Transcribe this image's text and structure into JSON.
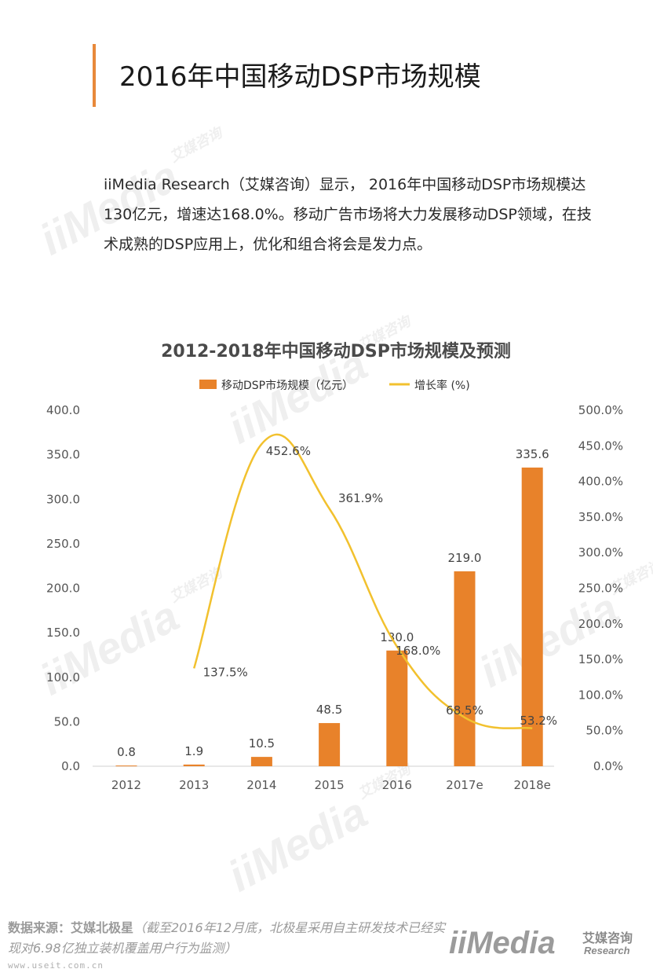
{
  "page_title": "2016年中国移动DSP市场规模",
  "intro": "iiMedia Research（艾媒咨询）显示， 2016年中国移动DSP市场规模达130亿元，增速达168.0%。移动广告市场将大力发展移动DSP领域，在技术成熟的DSP应用上，优化和组合将会是发力点。",
  "watermark": {
    "brand": "iiMedia",
    "cn": "艾媒咨询",
    "en": "Research"
  },
  "colors": {
    "accent": "#e8893a",
    "bar": "#e8822a",
    "line": "#f2c12e"
  },
  "chart_data": {
    "type": "bar",
    "title": "2012-2018年中国移动DSP市场规模及预测",
    "categories": [
      "2012",
      "2013",
      "2014",
      "2015",
      "2016",
      "2017e",
      "2018e"
    ],
    "series": [
      {
        "name": "移动DSP市场规模（亿元）",
        "type": "bar",
        "axis": "left",
        "values": [
          0.8,
          1.9,
          10.5,
          48.5,
          130.0,
          219.0,
          335.6
        ],
        "labels": [
          "0.8",
          "1.9",
          "10.5",
          "48.5",
          "130.0",
          "219.0",
          "335.6"
        ]
      },
      {
        "name": "增长率 (%)",
        "type": "line",
        "axis": "right",
        "values": [
          null,
          137.5,
          452.6,
          361.9,
          168.0,
          68.5,
          53.2
        ],
        "labels": [
          "",
          "137.5%",
          "452.6%",
          "361.9%",
          "168.0%",
          "68.5%",
          "53.2%"
        ]
      }
    ],
    "y_left": {
      "range": [
        0,
        400
      ],
      "ticks": [
        "0.0",
        "50.0",
        "100.0",
        "150.0",
        "200.0",
        "250.0",
        "300.0",
        "350.0",
        "400.0"
      ]
    },
    "y_right": {
      "range": [
        0,
        500
      ],
      "ticks": [
        "0.0%",
        "50.0%",
        "100.0%",
        "150.0%",
        "200.0%",
        "250.0%",
        "300.0%",
        "350.0%",
        "400.0%",
        "450.0%",
        "500.0%"
      ]
    },
    "legend_position": "top-center",
    "grid": false
  },
  "footer": {
    "source_label": "数据来源：艾媒北极星",
    "source_note": "（截至2016年12月底，北极星采用自主研发技术已经实现对6.98亿独立装机覆盖用户行为监测）",
    "url": "www.useit.com.cn"
  },
  "logo": {
    "brand": "iiMedia",
    "cn": "艾媒咨询",
    "en": "Research"
  }
}
